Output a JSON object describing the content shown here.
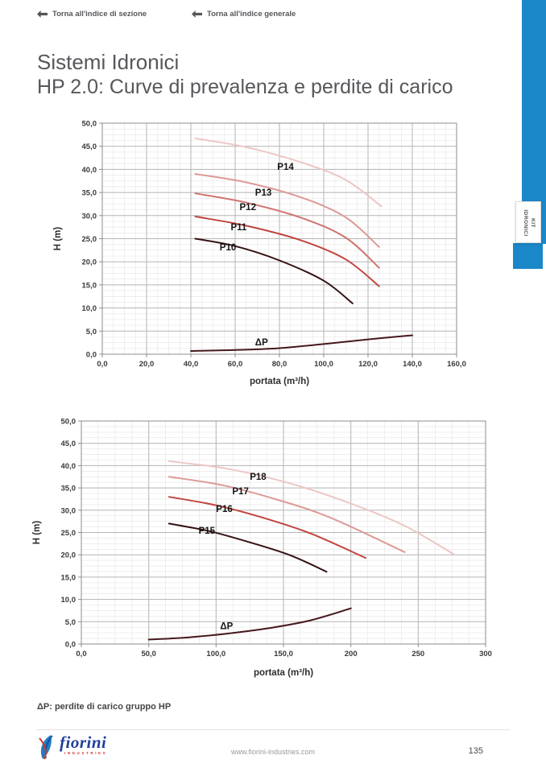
{
  "nav": [
    {
      "label": "Torna all'indice di sezione"
    },
    {
      "label": "Torna all'indice generale"
    }
  ],
  "title": "Sistemi Idronici",
  "subtitle": "HP 2.0: Curve di prevalenza e perdite di carico",
  "side_tab": {
    "line1": "KIT",
    "line2": "IDRONICI",
    "color": "#1a87c8"
  },
  "note": "ΔP: perdite di carico gruppo HP",
  "footer": {
    "url": "www.fiorini-industries.com",
    "page_number": "135",
    "logo_name": "fiorini",
    "logo_sub": "INDUSTRIES"
  },
  "chart_data": [
    {
      "type": "line",
      "title": "",
      "xlabel": "portata (m³/h)",
      "ylabel": "H (m)",
      "xlim": [
        0,
        160
      ],
      "ylim": [
        0,
        50
      ],
      "grid": true,
      "x_minor_step": 5,
      "y_minor_step": 1.25,
      "x_tick_values": [
        0,
        20,
        40,
        60,
        80,
        100,
        120,
        140,
        160
      ],
      "x_tick_labels": [
        "0,0",
        "20,0",
        "40,0",
        "60,0",
        "80,0",
        "100,0",
        "120,0",
        "140,0",
        "160,0"
      ],
      "y_tick_values": [
        0,
        5,
        10,
        15,
        20,
        25,
        30,
        35,
        40,
        45,
        50
      ],
      "y_tick_labels": [
        "0,0",
        "5,0",
        "10,0",
        "15,0",
        "20,0",
        "25,0",
        "30,0",
        "35,0",
        "40,0",
        "45,0",
        "50,0"
      ],
      "series": [
        {
          "name": "P14",
          "color": "#edc6c4",
          "label_pos": [
            79,
            39.9
          ],
          "points": [
            [
              42,
              46.7
            ],
            [
              65,
              44.8
            ],
            [
              90,
              41.5
            ],
            [
              110,
              37.7
            ],
            [
              126,
              32.0
            ]
          ]
        },
        {
          "name": "P13",
          "color": "#dd9a96",
          "label_pos": [
            69,
            34.3
          ],
          "points": [
            [
              42,
              39.0
            ],
            [
              65,
              37.2
            ],
            [
              90,
              33.9
            ],
            [
              110,
              29.6
            ],
            [
              125,
              23.2
            ]
          ]
        },
        {
          "name": "P12",
          "color": "#cf7571",
          "label_pos": [
            62,
            31.2
          ],
          "points": [
            [
              42,
              34.8
            ],
            [
              65,
              32.8
            ],
            [
              90,
              29.5
            ],
            [
              110,
              25.2
            ],
            [
              125,
              18.7
            ]
          ]
        },
        {
          "name": "P11",
          "color": "#c24540",
          "label_pos": [
            58,
            26.8
          ],
          "points": [
            [
              42,
              29.8
            ],
            [
              65,
              27.8
            ],
            [
              90,
              24.6
            ],
            [
              110,
              20.5
            ],
            [
              125,
              14.7
            ]
          ]
        },
        {
          "name": "P10",
          "color": "#351112",
          "label_pos": [
            53,
            22.5
          ],
          "points": [
            [
              42,
              25.0
            ],
            [
              60,
              23.4
            ],
            [
              80,
              20.3
            ],
            [
              100,
              15.9
            ],
            [
              113,
              11.0
            ]
          ]
        },
        {
          "name": "ΔP",
          "color": "#46181c",
          "label_pos": [
            69,
            1.9
          ],
          "points": [
            [
              40,
              0.7
            ],
            [
              60,
              0.9
            ],
            [
              80,
              1.3
            ],
            [
              100,
              2.2
            ],
            [
              120,
              3.2
            ],
            [
              140,
              4.1
            ]
          ]
        }
      ]
    },
    {
      "type": "line",
      "title": "",
      "xlabel": "portata (m³/h)",
      "ylabel": "H (m)",
      "xlim": [
        0,
        300
      ],
      "ylim": [
        0,
        50
      ],
      "grid": true,
      "x_minor_step": 12.5,
      "y_minor_step": 1.25,
      "x_tick_values": [
        0,
        50,
        100,
        150,
        200,
        250,
        300
      ],
      "x_tick_labels": [
        "0,0",
        "50,0",
        "100,0",
        "150,0",
        "200",
        "250",
        "300"
      ],
      "y_tick_values": [
        0,
        5,
        10,
        15,
        20,
        25,
        30,
        35,
        40,
        45,
        50
      ],
      "y_tick_labels": [
        "0,0",
        "5,0",
        "10,0",
        "15,0",
        "20,0",
        "25,0",
        "30,0",
        "35,0",
        "40,0",
        "45,0",
        "50,0"
      ],
      "series": [
        {
          "name": "P18",
          "color": "#edc6c4",
          "label_pos": [
            125,
            36.8
          ],
          "points": [
            [
              65,
              41.0
            ],
            [
              110,
              39.2
            ],
            [
              155,
              36.0
            ],
            [
              200,
              31.5
            ],
            [
              240,
              26.5
            ],
            [
              276,
              20.2
            ]
          ]
        },
        {
          "name": "P17",
          "color": "#dd9a96",
          "label_pos": [
            112,
            33.6
          ],
          "points": [
            [
              65,
              37.5
            ],
            [
              105,
              35.6
            ],
            [
              145,
              32.4
            ],
            [
              185,
              28.3
            ],
            [
              240,
              20.6
            ]
          ]
        },
        {
          "name": "P16",
          "color": "#c24540",
          "label_pos": [
            100,
            29.6
          ],
          "points": [
            [
              65,
              33.0
            ],
            [
              100,
              31.1
            ],
            [
              135,
              28.3
            ],
            [
              170,
              24.8
            ],
            [
              211,
              19.3
            ]
          ]
        },
        {
          "name": "P15",
          "color": "#351112",
          "label_pos": [
            87,
            24.7
          ],
          "points": [
            [
              65,
              27.0
            ],
            [
              95,
              25.3
            ],
            [
              125,
              22.8
            ],
            [
              155,
              19.9
            ],
            [
              182,
              16.2
            ]
          ]
        },
        {
          "name": "ΔP",
          "color": "#46181c",
          "label_pos": [
            103,
            3.3
          ],
          "points": [
            [
              50,
              1.0
            ],
            [
              80,
              1.5
            ],
            [
              110,
              2.4
            ],
            [
              140,
              3.6
            ],
            [
              170,
              5.3
            ],
            [
              200,
              8.0
            ]
          ]
        }
      ]
    }
  ]
}
